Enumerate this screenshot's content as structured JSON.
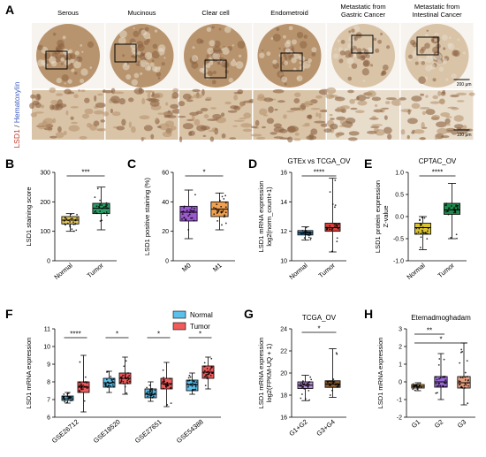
{
  "panel_a": {
    "letter": "A",
    "ylabel_part1": "LSD1",
    "ylabel_sep": " / ",
    "ylabel_part2": "Hematoxylin",
    "columns": [
      {
        "label1": "Serous",
        "label2": ""
      },
      {
        "label1": "Mucinous",
        "label2": ""
      },
      {
        "label1": "Clear cell",
        "label2": ""
      },
      {
        "label1": "Endometroid",
        "label2": ""
      },
      {
        "label1": "Metastatic from",
        "label2": "Gastric Cancer"
      },
      {
        "label1": "Metastatic from",
        "label2": "Intestinal Cancer"
      }
    ],
    "scale_top": "200 μm",
    "scale_bottom": "100 μm",
    "colors": {
      "tissue": "#b8946e",
      "tissue_dark": "#8a6040",
      "stroma": "#d9c4a8",
      "pale": "#e8dccb"
    }
  },
  "chart_data": [
    {
      "panel": "B",
      "type": "box",
      "title": "",
      "ylabel": "LSD1 staining score",
      "categories": [
        "Normal",
        "Tumor"
      ],
      "ylim": [
        0,
        300
      ],
      "yticks": [
        0,
        100,
        200,
        300
      ],
      "boxes": [
        {
          "min": 100,
          "q1": 125,
          "median": 138,
          "q3": 150,
          "max": 160,
          "color": "#e3c45a"
        },
        {
          "min": 105,
          "q1": 160,
          "median": 178,
          "q3": 195,
          "max": 250,
          "color": "#2d9a66"
        }
      ],
      "significance": [
        {
          "from": 0,
          "to": 1,
          "label": "***"
        }
      ]
    },
    {
      "panel": "C",
      "type": "box",
      "title": "",
      "ylabel": "LSD1 positive staining (%)",
      "categories": [
        "M0",
        "M1"
      ],
      "ylim": [
        0,
        60
      ],
      "yticks": [
        0,
        20,
        40,
        60
      ],
      "boxes": [
        {
          "min": 15,
          "q1": 27,
          "median": 33,
          "q3": 37,
          "max": 48,
          "color": "#9b59d0"
        },
        {
          "min": 21,
          "q1": 30,
          "median": 35,
          "q3": 40,
          "max": 46,
          "color": "#f0a050"
        }
      ],
      "significance": [
        {
          "from": 0,
          "to": 1,
          "label": "*"
        }
      ]
    },
    {
      "panel": "D",
      "type": "box",
      "title": "GTEx vs TCGA_OV",
      "ylabel": "LSD1 mRNA expression",
      "ylabel2": "log2(norm_count+1)",
      "categories": [
        "Normal",
        "Tumor"
      ],
      "ylim": [
        10,
        16
      ],
      "yticks": [
        10,
        12,
        14,
        16
      ],
      "boxes": [
        {
          "min": 11.4,
          "q1": 11.75,
          "median": 11.9,
          "q3": 12.05,
          "max": 12.3,
          "color": "#3a8ec8"
        },
        {
          "min": 10.6,
          "q1": 12.0,
          "median": 12.25,
          "q3": 12.55,
          "max": 15.6,
          "color": "#d9413a"
        }
      ],
      "significance": [
        {
          "from": 0,
          "to": 1,
          "label": "****"
        }
      ]
    },
    {
      "panel": "E",
      "type": "box",
      "title": "CPTAC_OV",
      "ylabel": "LSD1 protein expression",
      "ylabel2": "Z-value",
      "categories": [
        "Normal",
        "Tumor"
      ],
      "ylim": [
        -1.0,
        1.0
      ],
      "yticks": [
        -1.0,
        -0.5,
        0.0,
        0.5,
        1.0
      ],
      "boxes": [
        {
          "min": -0.75,
          "q1": -0.4,
          "median": -0.25,
          "q3": -0.15,
          "max": 0.0,
          "color": "#d9c230"
        },
        {
          "min": -0.5,
          "q1": 0.05,
          "median": 0.15,
          "q3": 0.3,
          "max": 0.75,
          "color": "#1f8a4c"
        }
      ],
      "significance": [
        {
          "from": 0,
          "to": 1,
          "label": "****"
        }
      ]
    },
    {
      "panel": "F",
      "type": "box",
      "title": "",
      "ylabel": "LSD1 mRNA expression",
      "categories": [
        "GSE26712",
        "GSE18520",
        "GSE27651",
        "GSE54388"
      ],
      "legend": [
        {
          "name": "Normal",
          "color": "#5bc0eb"
        },
        {
          "name": "Tumor",
          "color": "#f05a5a"
        }
      ],
      "ylim": [
        6,
        11
      ],
      "yticks": [
        6,
        7,
        8,
        9,
        10,
        11
      ],
      "groups": [
        {
          "normal": {
            "min": 6.8,
            "q1": 6.95,
            "median": 7.05,
            "q3": 7.2,
            "max": 7.4
          },
          "tumor": {
            "min": 6.3,
            "q1": 7.4,
            "median": 7.7,
            "q3": 8.0,
            "max": 9.5
          },
          "label": "****"
        },
        {
          "normal": {
            "min": 7.4,
            "q1": 7.7,
            "median": 7.95,
            "q3": 8.2,
            "max": 8.6
          },
          "tumor": {
            "min": 7.3,
            "q1": 7.9,
            "median": 8.2,
            "q3": 8.5,
            "max": 9.4
          },
          "label": "*"
        },
        {
          "normal": {
            "min": 6.9,
            "q1": 7.1,
            "median": 7.3,
            "q3": 7.6,
            "max": 8.0
          },
          "tumor": {
            "min": 6.6,
            "q1": 7.6,
            "median": 7.9,
            "q3": 8.2,
            "max": 9.1
          },
          "label": "*"
        },
        {
          "normal": {
            "min": 7.3,
            "q1": 7.5,
            "median": 7.85,
            "q3": 8.1,
            "max": 8.5
          },
          "tumor": {
            "min": 7.6,
            "q1": 8.2,
            "median": 8.55,
            "q3": 8.9,
            "max": 9.4
          },
          "label": "*"
        }
      ]
    },
    {
      "panel": "G",
      "type": "box",
      "title": "TCGA_OV",
      "ylabel": "LSD1 mRNA expression",
      "ylabel2": "log2(FPKM-UQ + 1)",
      "categories": [
        "G1+G2",
        "G3+G4"
      ],
      "ylim": [
        16,
        24
      ],
      "yticks": [
        16,
        18,
        20,
        22,
        24
      ],
      "boxes": [
        {
          "min": 17.5,
          "q1": 18.6,
          "median": 18.9,
          "q3": 19.2,
          "max": 19.8,
          "color": "#b98bd6"
        },
        {
          "min": 17.8,
          "q1": 18.7,
          "median": 19.0,
          "q3": 19.3,
          "max": 22.2,
          "color": "#8a5a2a"
        }
      ],
      "significance": [
        {
          "from": 0,
          "to": 1,
          "label": "*"
        }
      ]
    },
    {
      "panel": "H",
      "type": "box",
      "title": "Etemadmoghadam",
      "ylabel": "LSD1 mRNA expression",
      "categories": [
        "G1",
        "G2",
        "G3"
      ],
      "ylim": [
        -2,
        3
      ],
      "yticks": [
        -2,
        -1,
        0,
        1,
        2,
        3
      ],
      "boxes": [
        {
          "min": -0.5,
          "q1": -0.35,
          "median": -0.25,
          "q3": -0.15,
          "max": -0.05,
          "color": "#e8a63a"
        },
        {
          "min": -1.0,
          "q1": -0.3,
          "median": 0.0,
          "q3": 0.3,
          "max": 1.6,
          "color": "#9b6bd6"
        },
        {
          "min": -1.3,
          "q1": -0.35,
          "median": -0.05,
          "q3": 0.3,
          "max": 2.2,
          "color": "#e8a080"
        }
      ],
      "significance": [
        {
          "from": 0,
          "to": 1,
          "label": "**"
        },
        {
          "from": 0,
          "to": 2,
          "label": "*"
        }
      ]
    }
  ]
}
